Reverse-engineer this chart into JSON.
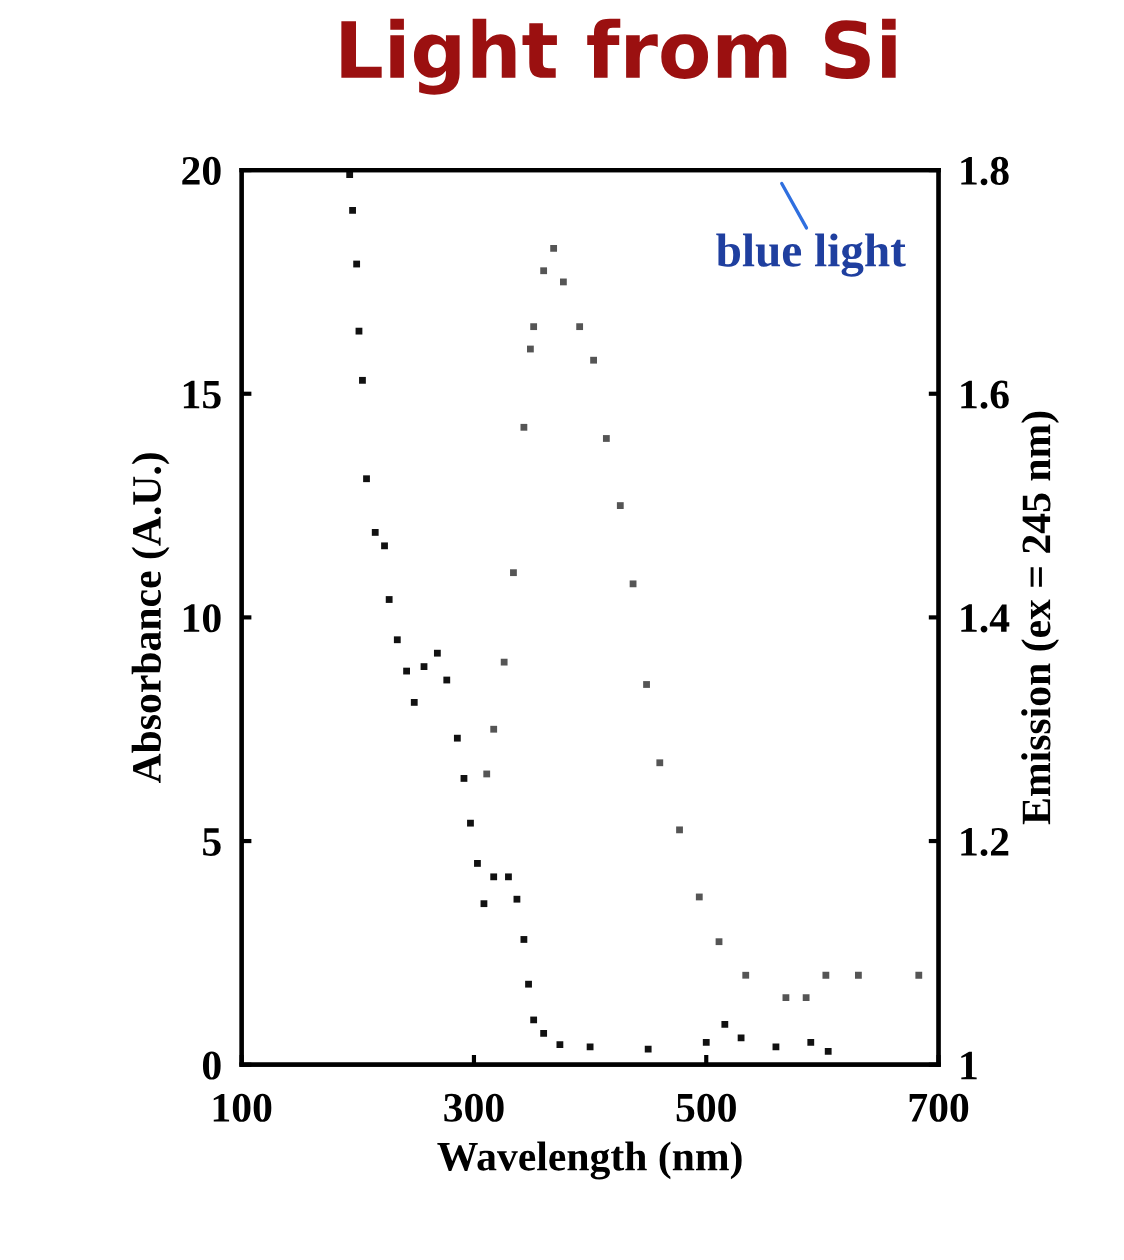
{
  "chart_data": {
    "type": "scatter",
    "title": "Light from Si",
    "xlabel": "Wavelength (nm)",
    "ylabel": "Absorbance (A.U.)",
    "y2label": "Emission (ex = 245 nm)",
    "annotations": [
      "blue light"
    ],
    "marker": "square",
    "grid": false,
    "legend": false,
    "xlim": [
      100,
      700
    ],
    "xticks": [
      100,
      300,
      500,
      700
    ],
    "ylim": [
      0,
      20
    ],
    "yticks": [
      0,
      5,
      10,
      15,
      20
    ],
    "y2lim": [
      1,
      1.8
    ],
    "y2ticks": [
      1,
      1.2,
      1.4,
      1.6,
      1.8
    ],
    "series": [
      {
        "color": "#111111",
        "x": [
          193,
          195.5,
          199,
          201,
          204,
          207.5,
          215,
          223,
          227,
          234,
          242,
          248.6,
          257,
          268.5,
          276.6,
          285.7,
          291.4,
          297,
          303,
          308.6,
          317,
          329.7,
          337,
          343,
          347,
          351.4,
          360,
          374,
          400,
          450,
          500,
          516,
          530,
          560,
          590,
          605
        ],
        "values": [
          19.9,
          19.1,
          17.9,
          16.4,
          15.3,
          13.1,
          11.9,
          11.6,
          10.4,
          9.5,
          8.8,
          8.1,
          8.9,
          9.2,
          8.6,
          7.3,
          6.4,
          5.4,
          4.5,
          3.6,
          4.2,
          4.2,
          3.7,
          2.8,
          1.8,
          1.0,
          0.7,
          0.45,
          0.4,
          0.35,
          0.5,
          0.9,
          0.6,
          0.4,
          0.5,
          0.3
        ]
      },
      {
        "color": "#555555",
        "axis": "y2",
        "x": [
          311,
          317,
          326,
          334,
          343,
          348.6,
          351.4,
          360,
          368.6,
          377,
          391,
          403,
          414,
          426,
          437,
          448.6,
          460,
          477,
          494,
          511,
          534,
          568.6,
          586,
          603,
          631,
          683
        ],
        "values": [
          1.26,
          1.3,
          1.36,
          1.44,
          1.57,
          1.64,
          1.66,
          1.71,
          1.73,
          1.7,
          1.66,
          1.63,
          1.56,
          1.5,
          1.43,
          1.34,
          1.27,
          1.21,
          1.15,
          1.11,
          1.08,
          1.06,
          1.06,
          1.08,
          1.08,
          1.08
        ]
      }
    ]
  }
}
